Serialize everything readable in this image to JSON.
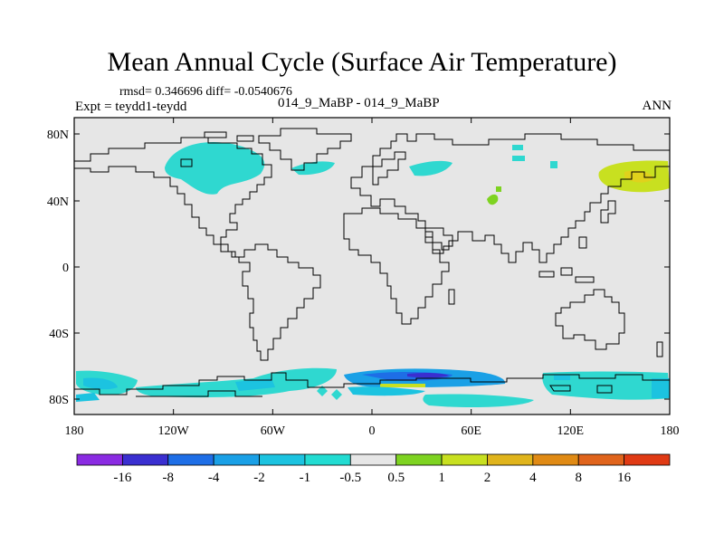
{
  "title": "Mean Annual Cycle (Surface Air Temperature)",
  "stats_line": "rmsd= 0.346696  diff= -0.0540676",
  "experiment_line": "Expt = teydd1-teydd",
  "center_label": "014_9_MaBP - 014_9_MaBP",
  "season_label": "ANN",
  "lat_ticks": [
    "80N",
    "40N",
    "0",
    "40S",
    "80S"
  ],
  "lon_ticks": [
    "180",
    "120W",
    "60W",
    "0",
    "60E",
    "120E",
    "180"
  ],
  "colorbar": {
    "labels": [
      "-16",
      "-8",
      "-4",
      "-2",
      "-1",
      "-0.5",
      "0.5",
      "1",
      "2",
      "4",
      "8",
      "16"
    ],
    "colors": [
      "#8a2be2",
      "#3a2fd0",
      "#1e6ee6",
      "#1aa0e6",
      "#1cc3e0",
      "#22dcd2",
      "#e6e6e6",
      "#7ed321",
      "#c8e020",
      "#e0b41c",
      "#e08a14",
      "#e0641c",
      "#e03a14"
    ]
  },
  "colors": {
    "background": "#e6e6e6",
    "coast": "#000000",
    "cyan": "#2fd8d0",
    "light_cyan": "#20c8e6",
    "blue": "#1e6ee6",
    "dark_blue": "#3a2fd0",
    "green": "#7ed321",
    "yellow": "#c8e020"
  }
}
